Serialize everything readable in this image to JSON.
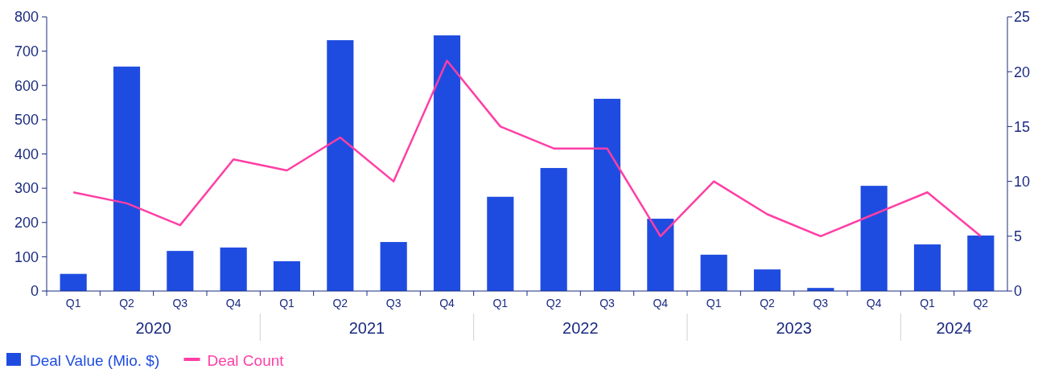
{
  "chart_data": {
    "type": "bar",
    "categories": [
      "Q1",
      "Q2",
      "Q3",
      "Q4",
      "Q1",
      "Q2",
      "Q3",
      "Q4",
      "Q1",
      "Q2",
      "Q3",
      "Q4",
      "Q1",
      "Q2",
      "Q3",
      "Q4",
      "Q1",
      "Q2"
    ],
    "series": [
      {
        "name": "Deal Value (Mio. $)",
        "color": "#1f4ce0",
        "values": [
          50,
          655,
          117,
          127,
          87,
          732,
          143,
          746,
          275,
          359,
          561,
          211,
          106,
          63,
          9,
          307,
          136,
          162
        ]
      },
      {
        "name": "Deal Count",
        "type": "line",
        "axis": "y2",
        "color": "#ff3ea5",
        "values": [
          9,
          8,
          6,
          12,
          11,
          14,
          10,
          21,
          15,
          13,
          13,
          5,
          10,
          7,
          5,
          7,
          9,
          5
        ]
      }
    ],
    "ylim": [
      0,
      800
    ],
    "yticks": [
      0,
      100,
      200,
      300,
      400,
      500,
      600,
      700,
      800
    ],
    "y2lim": [
      0,
      25
    ],
    "y2ticks": [
      0,
      5,
      10,
      15,
      20,
      25
    ],
    "annotations": [
      "2020",
      "2021",
      "2022",
      "2023",
      "2024"
    ],
    "legend": "bottom left"
  }
}
